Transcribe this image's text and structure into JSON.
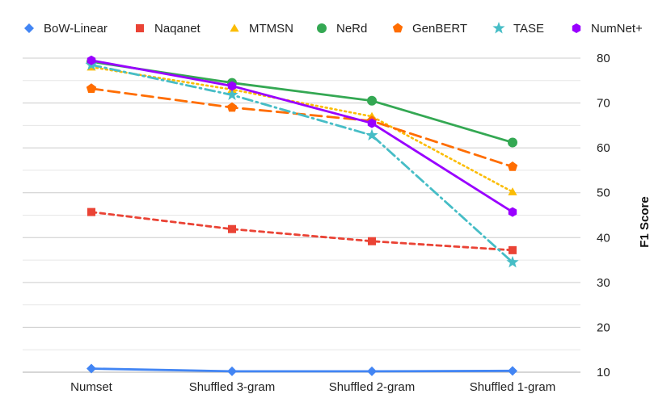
{
  "chart_data": {
    "type": "line",
    "title": "",
    "xlabel": "",
    "ylabel": "F1 Score",
    "ylim": [
      10,
      80
    ],
    "yticks": [
      10,
      20,
      30,
      40,
      50,
      60,
      70,
      80
    ],
    "minor_grid_step": 5,
    "categories": [
      "Numset",
      "Shuffled 3-gram",
      "Shuffled 2-gram",
      "Shuffled 1-gram"
    ],
    "legend_position": "top",
    "series": [
      {
        "name": "BoW-Linear",
        "values": [
          10.8,
          10.2,
          10.2,
          10.3
        ],
        "color": "#4285f4",
        "marker": "diamond",
        "dash": "solid"
      },
      {
        "name": "Naqanet",
        "values": [
          45.7,
          41.9,
          39.2,
          37.2
        ],
        "color": "#ea4335",
        "marker": "square",
        "dash": "dashed"
      },
      {
        "name": "MTMSN",
        "values": [
          78.0,
          73.0,
          67.0,
          50.2
        ],
        "color": "#fbbc04",
        "marker": "triangle",
        "dash": "dotted"
      },
      {
        "name": "NeRd",
        "values": [
          79.2,
          74.5,
          70.5,
          61.2
        ],
        "color": "#34a853",
        "marker": "circle",
        "dash": "solid"
      },
      {
        "name": "GenBERT",
        "values": [
          73.2,
          69.0,
          66.0,
          55.8
        ],
        "color": "#ff6d01",
        "marker": "pentagon",
        "dash": "longdash"
      },
      {
        "name": "TASE",
        "values": [
          78.5,
          71.8,
          62.8,
          34.5
        ],
        "color": "#46bdc6",
        "marker": "star",
        "dash": "dashdot"
      },
      {
        "name": "NumNet+",
        "values": [
          79.5,
          73.8,
          65.5,
          45.7
        ],
        "color": "#9900ff",
        "marker": "hexagon",
        "dash": "solid"
      }
    ]
  }
}
